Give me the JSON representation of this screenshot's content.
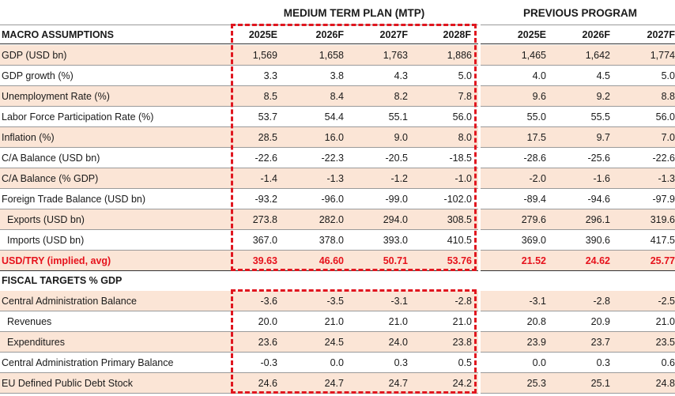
{
  "groups": {
    "mtp": "MEDIUM TERM PLAN (MTP)",
    "previous": "PREVIOUS PROGRAM"
  },
  "macro": {
    "header": "MACRO ASSUMPTIONS",
    "mtp_years": [
      "2025E",
      "2026F",
      "2027F",
      "2028F"
    ],
    "prev_years": [
      "2025E",
      "2026F",
      "2027F"
    ],
    "rows": [
      {
        "label": "GDP (USD bn)",
        "mtp": [
          "1,569",
          "1,658",
          "1,763",
          "1,886"
        ],
        "prev": [
          "1,465",
          "1,642",
          "1,774"
        ]
      },
      {
        "label": "GDP growth (%)",
        "mtp": [
          "3.3",
          "3.8",
          "4.3",
          "5.0"
        ],
        "prev": [
          "4.0",
          "4.5",
          "5.0"
        ]
      },
      {
        "label": "Unemployment Rate (%)",
        "mtp": [
          "8.5",
          "8.4",
          "8.2",
          "7.8"
        ],
        "prev": [
          "9.6",
          "9.2",
          "8.8"
        ]
      },
      {
        "label": "Labor Force Participation Rate (%)",
        "mtp": [
          "53.7",
          "54.4",
          "55.1",
          "56.0"
        ],
        "prev": [
          "55.0",
          "55.5",
          "56.0"
        ]
      },
      {
        "label": "Inflation (%)",
        "mtp": [
          "28.5",
          "16.0",
          "9.0",
          "8.0"
        ],
        "prev": [
          "17.5",
          "9.7",
          "7.0"
        ]
      },
      {
        "label": "C/A Balance (USD bn)",
        "mtp": [
          "-22.6",
          "-22.3",
          "-20.5",
          "-18.5"
        ],
        "prev": [
          "-28.6",
          "-25.6",
          "-22.6"
        ]
      },
      {
        "label": "C/A Balance (% GDP)",
        "mtp": [
          "-1.4",
          "-1.3",
          "-1.2",
          "-1.0"
        ],
        "prev": [
          "-2.0",
          "-1.6",
          "-1.3"
        ]
      },
      {
        "label": "Foreign Trade Balance (USD bn)",
        "mtp": [
          "-93.2",
          "-96.0",
          "-99.0",
          "-102.0"
        ],
        "prev": [
          "-89.4",
          "-94.6",
          "-97.9"
        ]
      },
      {
        "label": "Exports (USD bn)",
        "mtp": [
          "273.8",
          "282.0",
          "294.0",
          "308.5"
        ],
        "prev": [
          "279.6",
          "296.1",
          "319.6"
        ]
      },
      {
        "label": "Imports (USD bn)",
        "mtp": [
          "367.0",
          "378.0",
          "393.0",
          "410.5"
        ],
        "prev": [
          "369.0",
          "390.6",
          "417.5"
        ]
      },
      {
        "label": "USD/TRY (implied, avg)",
        "mtp": [
          "39.63",
          "46.60",
          "50.71",
          "53.76"
        ],
        "prev": [
          "21.52",
          "24.62",
          "25.77"
        ]
      }
    ]
  },
  "fiscal": {
    "header": "FISCAL TARGETS % GDP",
    "rows": [
      {
        "label": "Central Administration Balance",
        "mtp": [
          "-3.6",
          "-3.5",
          "-3.1",
          "-2.8"
        ],
        "prev": [
          "-3.1",
          "-2.8",
          "-2.5"
        ]
      },
      {
        "label": "Revenues",
        "mtp": [
          "20.0",
          "21.0",
          "21.0",
          "21.0"
        ],
        "prev": [
          "20.8",
          "20.9",
          "21.0"
        ]
      },
      {
        "label": "Expenditures",
        "mtp": [
          "23.6",
          "24.5",
          "24.0",
          "23.8"
        ],
        "prev": [
          "23.9",
          "23.7",
          "23.5"
        ]
      },
      {
        "label": "Central Administration Primary Balance",
        "mtp": [
          "-0.3",
          "0.0",
          "0.3",
          "0.5"
        ],
        "prev": [
          "0.0",
          "0.3",
          "0.6"
        ]
      },
      {
        "label": "EU Defined Public Debt Stock",
        "mtp": [
          "24.6",
          "24.7",
          "24.7",
          "24.2"
        ],
        "prev": [
          "25.3",
          "25.1",
          "24.8"
        ]
      }
    ]
  },
  "colors": {
    "row_shade": "#fbe5d6",
    "highlight_red": "#e6121c",
    "dashed_box": "#e0161f"
  }
}
